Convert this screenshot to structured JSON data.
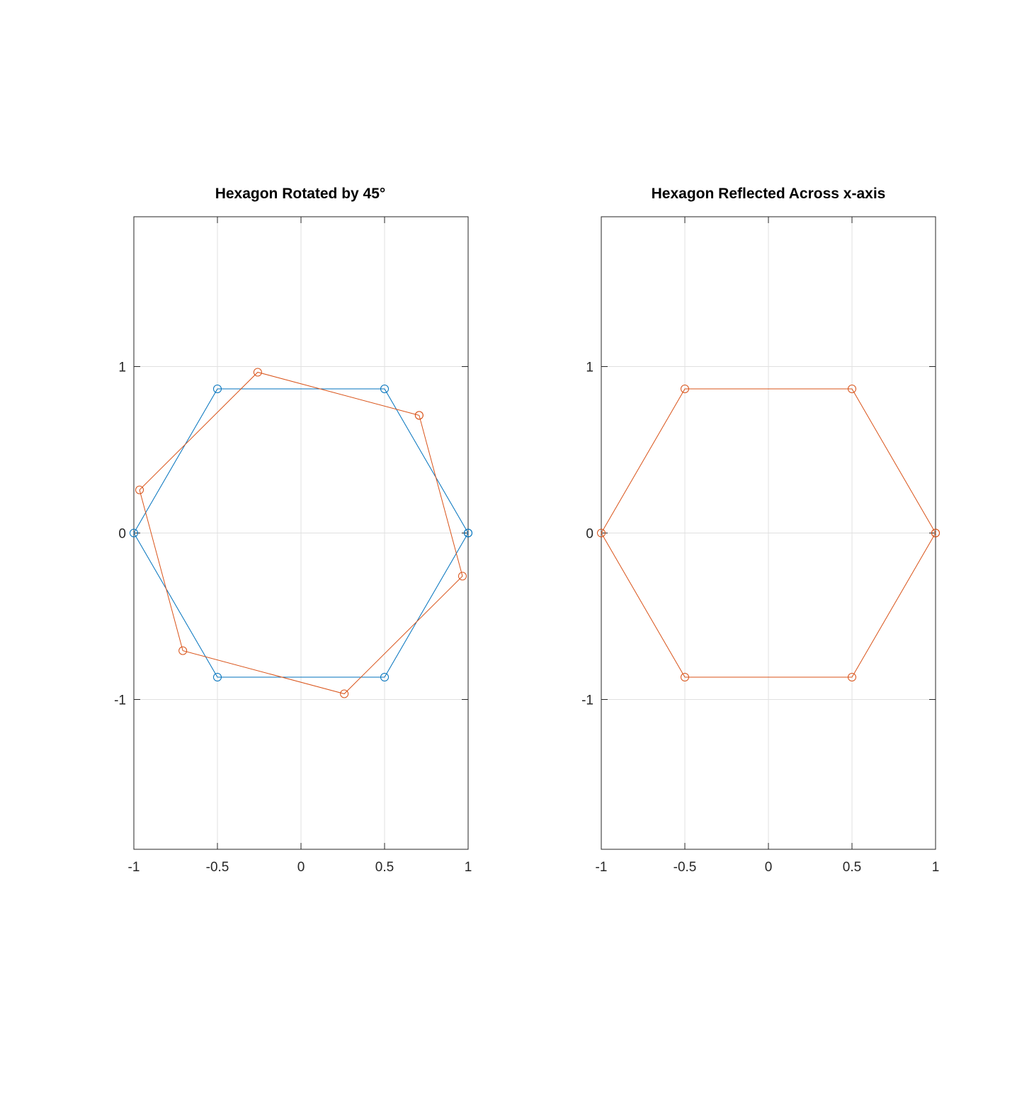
{
  "chart_data": [
    {
      "type": "line",
      "title": "Hexagon Rotated by 45°",
      "xlabel": "",
      "ylabel": "",
      "xlim": [
        -1,
        1
      ],
      "ylim": [
        -1.9,
        1.9
      ],
      "xticks": [
        -1,
        -0.5,
        0,
        0.5,
        1
      ],
      "xtick_labels": [
        "-1",
        "-0.5",
        "0",
        "0.5",
        "1"
      ],
      "yticks": [
        -1,
        0,
        1
      ],
      "ytick_labels": [
        "-1",
        "0",
        "1"
      ],
      "grid": true,
      "legend": false,
      "series": [
        {
          "color": "#0072BD",
          "marker": "circle",
          "points": [
            [
              1,
              0
            ],
            [
              0.5,
              0.866
            ],
            [
              -0.5,
              0.866
            ],
            [
              -1,
              0
            ],
            [
              -0.5,
              -0.866
            ],
            [
              0.5,
              -0.866
            ],
            [
              1,
              0
            ]
          ]
        },
        {
          "color": "#D95319",
          "marker": "circle",
          "points": [
            [
              0.707,
              0.707
            ],
            [
              -0.259,
              0.966
            ],
            [
              -0.966,
              0.259
            ],
            [
              -0.707,
              -0.707
            ],
            [
              0.259,
              -0.966
            ],
            [
              0.966,
              -0.259
            ],
            [
              0.707,
              0.707
            ]
          ]
        }
      ]
    },
    {
      "type": "line",
      "title": "Hexagon Reflected Across x-axis",
      "xlabel": "",
      "ylabel": "",
      "xlim": [
        -1,
        1
      ],
      "ylim": [
        -1.9,
        1.9
      ],
      "xticks": [
        -1,
        -0.5,
        0,
        0.5,
        1
      ],
      "xtick_labels": [
        "-1",
        "-0.5",
        "0",
        "0.5",
        "1"
      ],
      "yticks": [
        -1,
        0,
        1
      ],
      "ytick_labels": [
        "-1",
        "0",
        "1"
      ],
      "grid": true,
      "legend": false,
      "series": [
        {
          "color": "#D95319",
          "marker": "circle",
          "points": [
            [
              1,
              0
            ],
            [
              0.5,
              -0.866
            ],
            [
              -0.5,
              -0.866
            ],
            [
              -1,
              0
            ],
            [
              -0.5,
              0.866
            ],
            [
              0.5,
              0.866
            ],
            [
              1,
              0
            ]
          ]
        }
      ]
    }
  ]
}
